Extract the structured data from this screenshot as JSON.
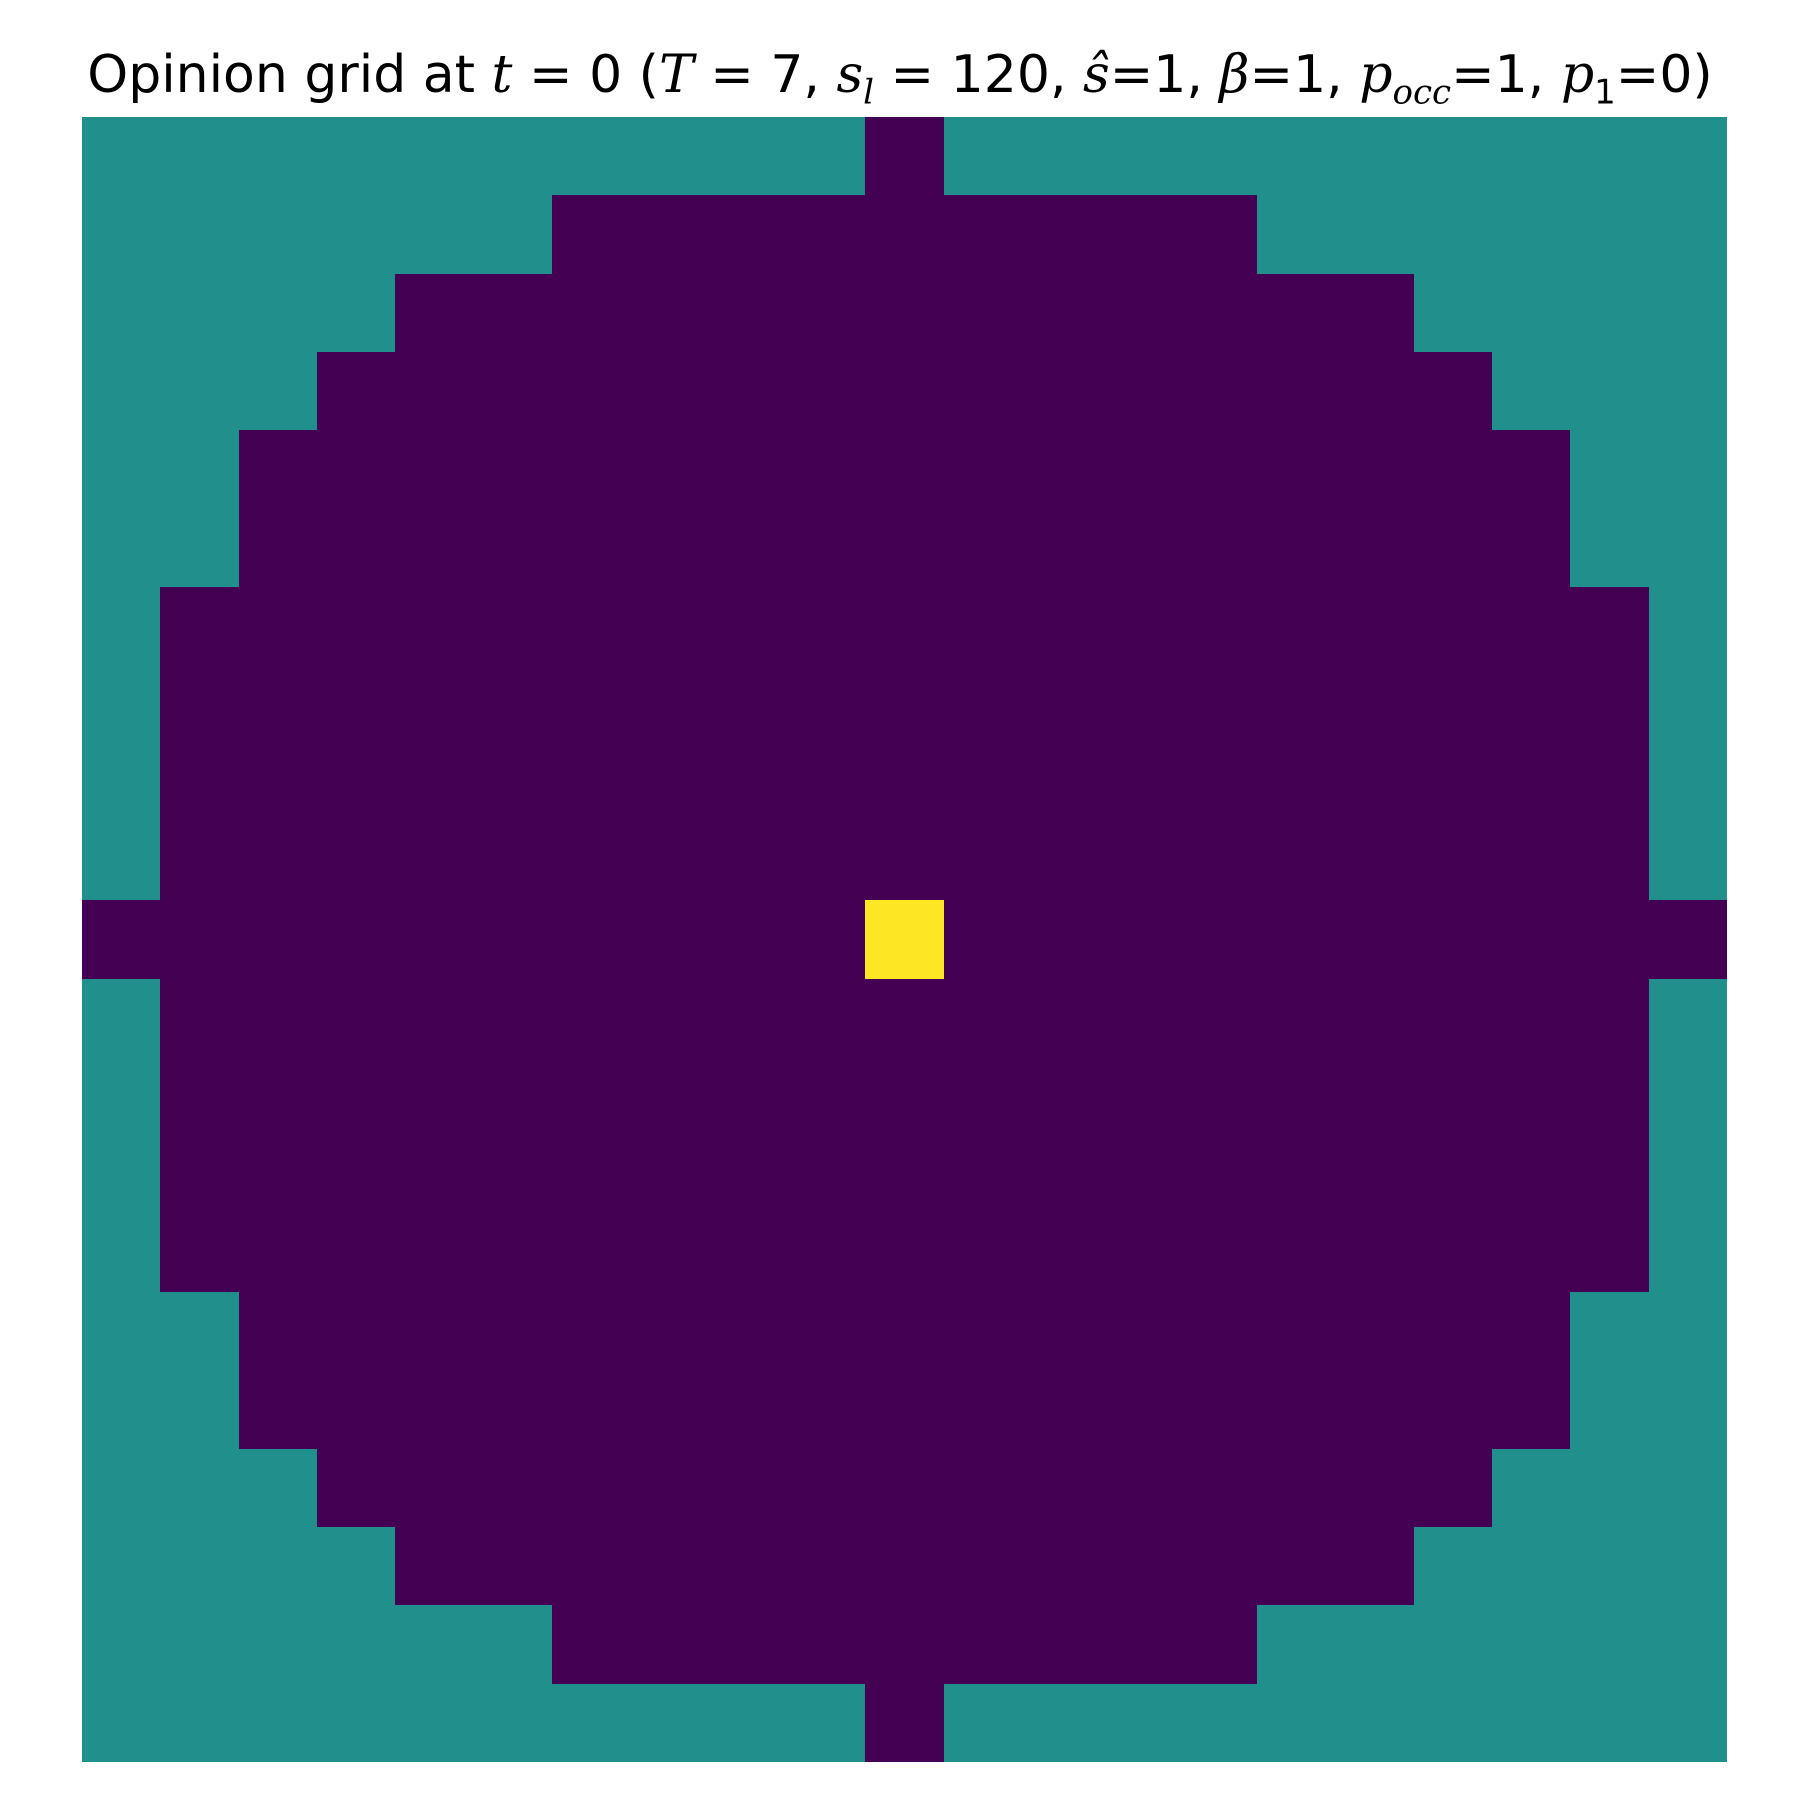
{
  "chart_data": {
    "type": "heatmap",
    "title": "Opinion grid at t = 0 (T = 7, s_l = 120, ŝ=1, β=1, p_occ=1, p_1=0)",
    "title_parts": {
      "prefix": "Opinion grid at ",
      "t_sym": "t",
      "t_val": "0",
      "T_sym": "T",
      "T_val": "7",
      "s_sym": "s",
      "s_sub": "l",
      "s_val": "120",
      "shat_sym": "ŝ",
      "shat_val": "1",
      "beta_sym": "β",
      "beta_val": "1",
      "pocc_sym": "p",
      "pocc_sub": "occ",
      "pocc_val": "1",
      "p1_sym": "p",
      "p1_sub": "1",
      "p1_val": "0"
    },
    "grid_size": 21,
    "center": [
      10,
      10
    ],
    "radius": 10,
    "colors": {
      "outside": "#21908d",
      "inside": "#440154",
      "center": "#fde725"
    },
    "values_legend": {
      "outside": 0,
      "inside": -1,
      "center": 1
    },
    "xlabel": "",
    "ylabel": "",
    "axes_visible": false
  }
}
